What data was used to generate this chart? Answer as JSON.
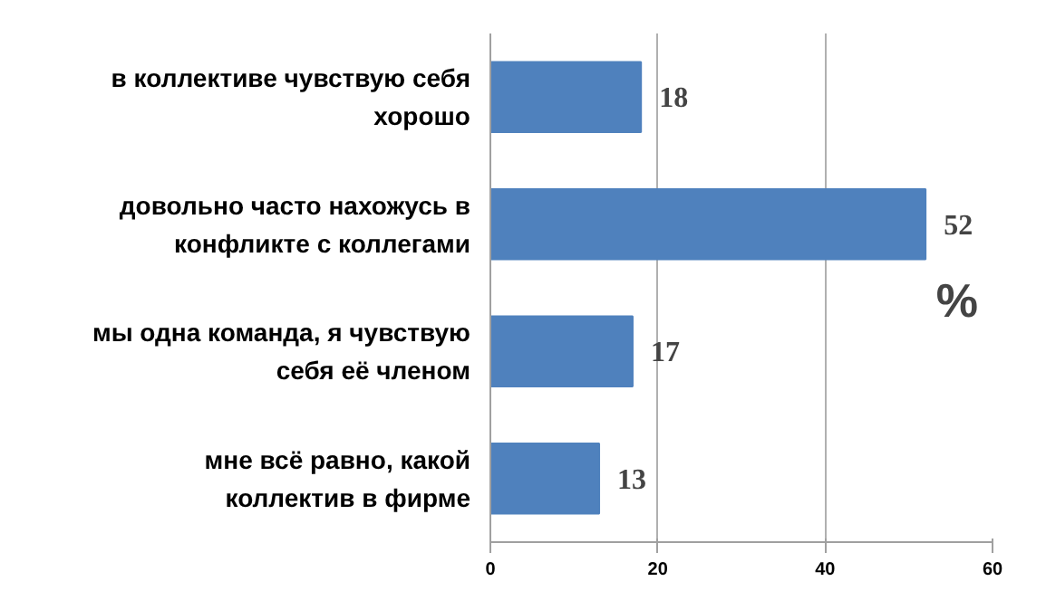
{
  "chart_data": {
    "type": "bar",
    "orientation": "horizontal",
    "categories": [
      "в коллективе чувствую себя хорошо",
      "довольно часто нахожусь в конфликте с коллегами",
      "мы одна команда, я чувствую себя её членом",
      "мне всё равно, какой коллектив в фирме"
    ],
    "values": [
      18,
      52,
      17,
      13
    ],
    "color": "#4f81bd",
    "xlim": [
      0,
      60
    ],
    "xticks": [
      0,
      20,
      40,
      60
    ],
    "grid": "x",
    "data_labels": true,
    "annotations": [
      "%"
    ]
  }
}
